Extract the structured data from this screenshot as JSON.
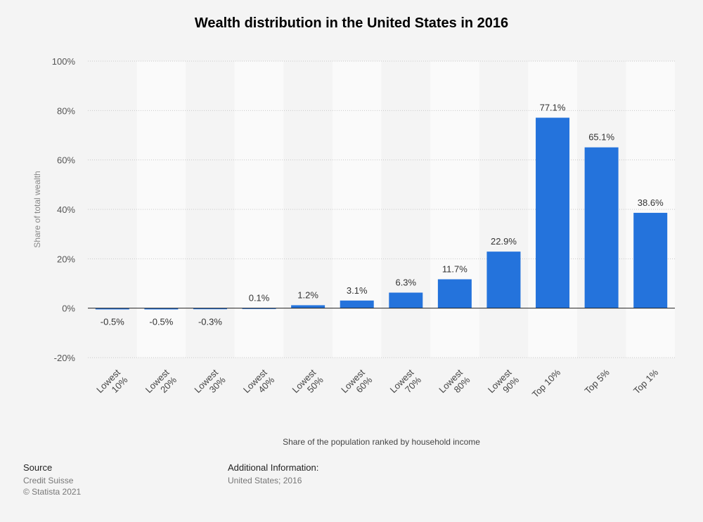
{
  "chart_data": {
    "type": "bar",
    "title": "Wealth distribution in the United States in 2016",
    "xlabel": "Share of the population ranked by household income",
    "ylabel": "Share of total wealth",
    "categories": [
      [
        "Lowest",
        "10%"
      ],
      [
        "Lowest",
        "20%"
      ],
      [
        "Lowest",
        "30%"
      ],
      [
        "Lowest",
        "40%"
      ],
      [
        "Lowest",
        "50%"
      ],
      [
        "Lowest",
        "60%"
      ],
      [
        "Lowest",
        "70%"
      ],
      [
        "Lowest",
        "80%"
      ],
      [
        "Lowest",
        "90%"
      ],
      [
        "Top 10%"
      ],
      [
        "Top 5%"
      ],
      [
        "Top 1%"
      ]
    ],
    "values": [
      -0.5,
      -0.5,
      -0.3,
      0.1,
      1.2,
      3.1,
      6.3,
      11.7,
      22.9,
      77.1,
      65.1,
      38.6
    ],
    "value_labels": [
      "-0.5%",
      "-0.5%",
      "-0.3%",
      "0.1%",
      "1.2%",
      "3.1%",
      "6.3%",
      "11.7%",
      "22.9%",
      "77.1%",
      "65.1%",
      "38.6%"
    ],
    "ylim": [
      -20,
      100
    ],
    "yticks": [
      -20,
      0,
      20,
      40,
      60,
      80,
      100
    ],
    "ytick_labels": [
      "-20%",
      "0%",
      "20%",
      "40%",
      "60%",
      "80%",
      "100%"
    ],
    "grid": true,
    "bar_color": "#2473dc"
  },
  "footer": {
    "source_label": "Source",
    "source_lines": [
      "Credit Suisse",
      "© Statista 2021"
    ],
    "info_label": "Additional Information:",
    "info_text": "United States; 2016"
  }
}
